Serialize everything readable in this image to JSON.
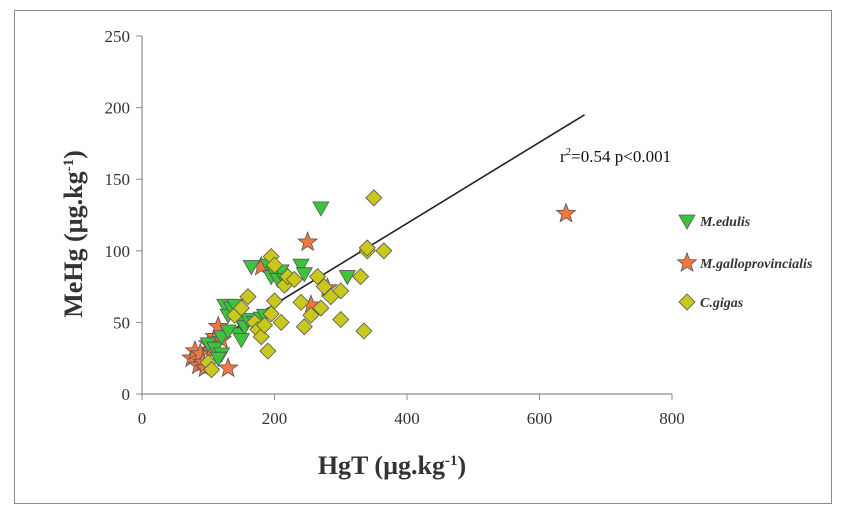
{
  "chart_data": {
    "type": "scatter",
    "xlabel_main": "HgT (µg.kg",
    "xlabel_sup": "-1",
    "xlabel_end": ")",
    "ylabel_main": "MeHg (µg.kg",
    "ylabel_sup": "-1",
    "ylabel_end": ")",
    "xlim": [
      0,
      800
    ],
    "ylim": [
      0,
      250
    ],
    "xticks": [
      0,
      200,
      400,
      600,
      800
    ],
    "yticks": [
      0,
      50,
      100,
      150,
      200,
      250
    ],
    "grid": false,
    "legend_position": "right",
    "annotation": {
      "r": "r",
      "sup": "2",
      "rest": "=0.54 p<0.001"
    },
    "trendline": {
      "x": [
        85,
        668
      ],
      "y": [
        30,
        195
      ]
    },
    "series": [
      {
        "name": "M.edulis",
        "marker": "triangle-down",
        "color": "#3cc43c",
        "x": [
          100,
          110,
          120,
          125,
          130,
          135,
          140,
          145,
          150,
          155,
          160,
          165,
          170,
          175,
          180,
          185,
          190,
          195,
          200,
          205,
          210,
          215,
          220,
          240,
          245,
          270,
          310,
          120,
          130,
          150,
          115
        ],
        "y": [
          35,
          32,
          28,
          62,
          55,
          60,
          62,
          42,
          50,
          47,
          52,
          89,
          50,
          46,
          53,
          55,
          90,
          82,
          85,
          80,
          86,
          80,
          78,
          90,
          84,
          130,
          82,
          40,
          44,
          38,
          25
        ]
      },
      {
        "name": "M.galloprovincialis",
        "marker": "star",
        "color": "#f07840",
        "x": [
          75,
          80,
          85,
          88,
          92,
          95,
          100,
          105,
          110,
          115,
          120,
          130,
          180,
          250,
          255,
          280,
          640
        ],
        "y": [
          25,
          30,
          20,
          28,
          22,
          18,
          35,
          30,
          40,
          47,
          38,
          18,
          89,
          106,
          62,
          74,
          126
        ]
      },
      {
        "name": "C.gigas",
        "marker": "diamond",
        "color": "#c8c81e",
        "x": [
          100,
          105,
          140,
          150,
          160,
          170,
          175,
          180,
          185,
          190,
          195,
          195,
          200,
          200,
          210,
          215,
          220,
          230,
          240,
          245,
          255,
          265,
          270,
          275,
          285,
          300,
          300,
          330,
          335,
          340,
          340,
          350,
          365
        ],
        "y": [
          22,
          17,
          55,
          60,
          68,
          50,
          45,
          40,
          48,
          30,
          56,
          96,
          65,
          90,
          50,
          76,
          82,
          80,
          64,
          47,
          55,
          82,
          60,
          75,
          68,
          52,
          72,
          82,
          44,
          100,
          102,
          137,
          100
        ]
      }
    ]
  }
}
